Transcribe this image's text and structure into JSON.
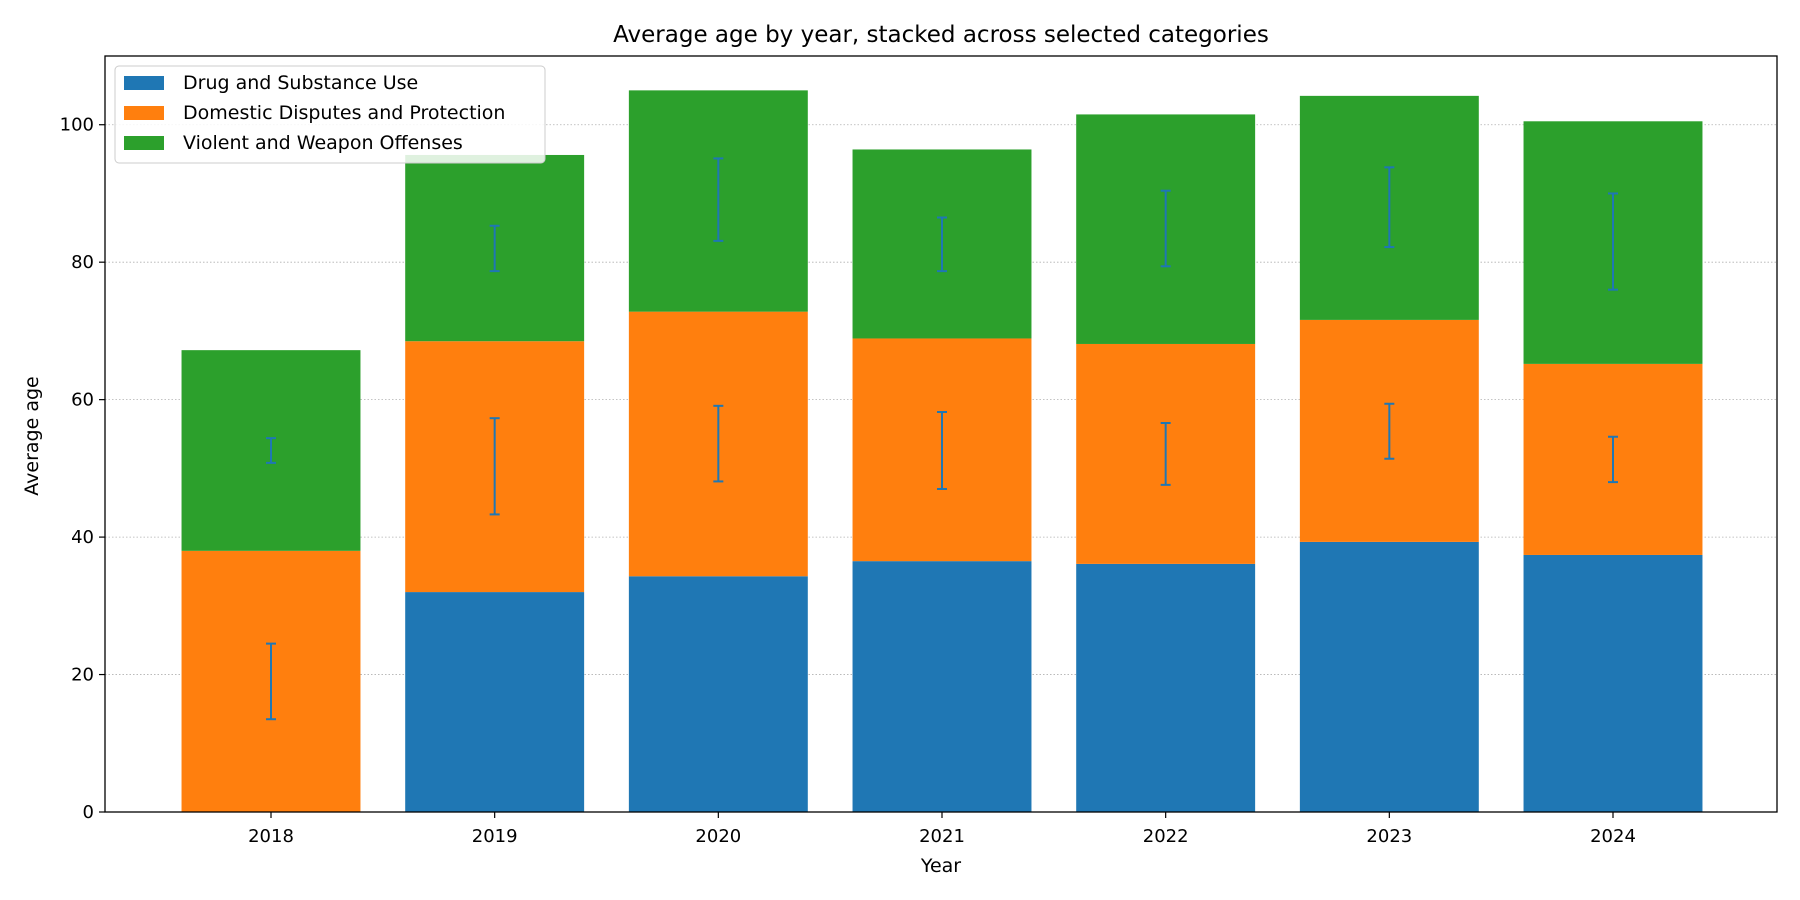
{
  "chart_data": {
    "type": "bar",
    "stacked": true,
    "title": "Average age by year, stacked across selected categories",
    "xlabel": "Year",
    "ylabel": "Average age",
    "categories": [
      "2018",
      "2019",
      "2020",
      "2021",
      "2022",
      "2023",
      "2024"
    ],
    "ylim": [
      0,
      110
    ],
    "yticks": [
      0,
      20,
      40,
      60,
      80,
      100
    ],
    "grid": "horizontal dotted",
    "legend_position": "top-left",
    "series": [
      {
        "name": "Drug and Substance Use",
        "color": "#1f77b4",
        "values": [
          0,
          32.0,
          34.3,
          36.5,
          36.1,
          39.3,
          37.4
        ]
      },
      {
        "name": "Domestic Disputes and Protection",
        "color": "#ff7f0e",
        "values": [
          38.0,
          36.5,
          38.5,
          32.4,
          32.0,
          32.3,
          27.8
        ]
      },
      {
        "name": "Violent and Weapon Offenses",
        "color": "#2ca02c",
        "values": [
          29.2,
          27.1,
          32.2,
          27.5,
          33.4,
          32.6,
          35.3
        ]
      }
    ],
    "error_bars": {
      "color": "#1f77b4",
      "items": [
        {
          "series": "Domestic Disputes and Protection",
          "centers": [
            19.0,
            50.3,
            53.6,
            52.6,
            52.1,
            55.4,
            51.3
          ],
          "errors": [
            5.5,
            7.0,
            5.5,
            5.6,
            4.5,
            4.0,
            3.3
          ]
        },
        {
          "series": "Violent and Weapon Offenses",
          "centers": [
            52.6,
            82.0,
            89.1,
            82.6,
            84.9,
            88.0,
            83.0
          ],
          "errors": [
            1.8,
            3.3,
            6.0,
            3.9,
            5.5,
            5.8,
            7.0
          ]
        }
      ]
    }
  }
}
